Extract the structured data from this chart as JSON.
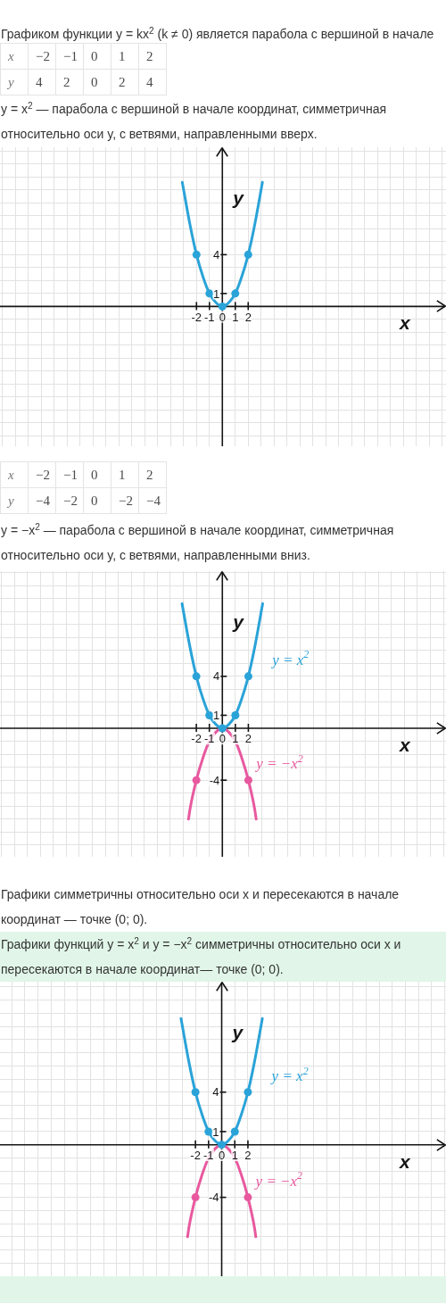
{
  "chart_data": [
    {
      "type": "heatmap",
      "title": "Графиком функции y = kx$^{2}$ (k ≠ 0) является парабола с вершиной в начале",
      "xlabel": "x",
      "categories": [
        "−2",
        "−1",
        "0",
        "1",
        "2"
      ],
      "y_categories": [
        "y"
      ],
      "cells": [
        [
          4,
          2,
          0,
          2,
          4
        ]
      ],
      "data_labels": true
    },
    {
      "type": "line",
      "title": "y = x$^{2}$ — парабола с вершиной в начале координат, симметричная относительно оси y, с ветвями, направленными вверх.",
      "xlabel": "x",
      "ylabel": "y",
      "xlim": [
        -17.2,
        17.3
      ],
      "ylim": [
        -10.8,
        12.3
      ],
      "xticks": [
        {
          "value": -17,
          "label": null
        },
        {
          "value": -16,
          "label": null
        },
        {
          "value": -15,
          "label": null
        },
        {
          "value": -14,
          "label": null
        },
        {
          "value": -13,
          "label": null
        },
        {
          "value": -12,
          "label": null
        },
        {
          "value": -11,
          "label": null
        },
        {
          "value": -10,
          "label": null
        },
        {
          "value": -9,
          "label": null
        },
        {
          "value": -8,
          "label": null
        },
        {
          "value": -7,
          "label": null
        },
        {
          "value": -6,
          "label": null
        },
        {
          "value": -5,
          "label": null
        },
        {
          "value": -4,
          "label": null
        },
        {
          "value": -3,
          "label": null
        },
        -2,
        -1,
        0,
        1,
        2,
        {
          "value": 3,
          "label": null
        },
        {
          "value": 4,
          "label": null
        },
        {
          "value": 5,
          "label": null
        },
        {
          "value": 6,
          "label": null
        },
        {
          "value": 7,
          "label": null
        },
        {
          "value": 8,
          "label": null
        },
        {
          "value": 9,
          "label": null
        },
        {
          "value": 10,
          "label": null
        },
        {
          "value": 11,
          "label": null
        },
        {
          "value": 12,
          "label": null
        },
        {
          "value": 13,
          "label": null
        },
        {
          "value": 14,
          "label": null
        },
        {
          "value": 15,
          "label": null
        },
        {
          "value": 16,
          "label": null
        },
        {
          "value": 17,
          "label": null
        }
      ],
      "yticks": [
        {
          "value": -10,
          "label": null
        },
        {
          "value": -9,
          "label": null
        },
        {
          "value": -8,
          "label": null
        },
        {
          "value": -7,
          "label": null
        },
        {
          "value": -6,
          "label": null
        },
        {
          "value": -5,
          "label": null
        },
        {
          "value": -4,
          "label": null
        },
        {
          "value": -3,
          "label": null
        },
        {
          "value": -2,
          "label": null
        },
        {
          "value": -1,
          "label": null
        },
        {
          "value": 0,
          "label": null
        },
        1,
        {
          "value": 2,
          "label": null
        },
        {
          "value": 3,
          "label": null
        },
        4,
        {
          "value": 5,
          "label": null
        },
        {
          "value": 6,
          "label": null
        },
        {
          "value": 7,
          "label": null
        },
        {
          "value": 8,
          "label": null
        },
        {
          "value": 9,
          "label": null
        },
        {
          "value": 10,
          "label": null
        },
        {
          "value": 11,
          "label": null
        },
        {
          "value": 12,
          "label": null
        }
      ],
      "grid": true,
      "marker": "circle",
      "series": [
        {
          "type": "line",
          "marker": "none",
          "color": "#2aa3d8",
          "x": [
            -3.1,
            -2.5,
            -2,
            -1.5,
            -1,
            -0.5,
            0,
            0.5,
            1,
            1.5,
            2,
            2.5,
            3.1
          ],
          "values": [
            9.6,
            6.3,
            4,
            2.3,
            1,
            0.3,
            0,
            0.3,
            1,
            2.3,
            4,
            6.3,
            9.6
          ]
        },
        {
          "type": "scatter",
          "color": "#2aa3d8",
          "x": [
            -2,
            -1,
            0,
            1,
            2
          ],
          "values": [
            4,
            1,
            0,
            1,
            4
          ]
        }
      ]
    },
    {
      "type": "heatmap",
      "xlabel": "x",
      "categories": [
        "−2",
        "−1",
        "0",
        "1",
        "2"
      ],
      "y_categories": [
        "y"
      ],
      "cells": [
        [
          -4,
          -2,
          0,
          -2,
          -4
        ]
      ],
      "cell_labels": [
        [
          "−4",
          "−2",
          "0",
          "−2",
          "−4"
        ]
      ]
    },
    {
      "type": "line",
      "title": "y = −x$^{2}$ — парабола с вершиной в начале координат, симметричная относительно оси y, с ветвями, направленными вниз.",
      "annotations": [
        "Графики симметричны относительно оси x и пересекаются в начале координат — точке (0; 0)."
      ],
      "xlabel": "x",
      "ylabel": "y",
      "xlim": [
        -17.1,
        17.2
      ],
      "ylim": [
        -9.9,
        12.1
      ],
      "xticks": [
        {
          "value": -17,
          "label": null
        },
        {
          "value": -16,
          "label": null
        },
        {
          "value": -15,
          "label": null
        },
        {
          "value": -14,
          "label": null
        },
        {
          "value": -13,
          "label": null
        },
        {
          "value": -12,
          "label": null
        },
        {
          "value": -11,
          "label": null
        },
        {
          "value": -10,
          "label": null
        },
        {
          "value": -9,
          "label": null
        },
        {
          "value": -8,
          "label": null
        },
        {
          "value": -7,
          "label": null
        },
        {
          "value": -6,
          "label": null
        },
        {
          "value": -5,
          "label": null
        },
        {
          "value": -4,
          "label": null
        },
        {
          "value": -3,
          "label": null
        },
        -2,
        -1,
        0,
        1,
        2,
        {
          "value": 3,
          "label": null
        },
        {
          "value": 4,
          "label": null
        },
        {
          "value": 5,
          "label": null
        },
        {
          "value": 6,
          "label": null
        },
        {
          "value": 7,
          "label": null
        },
        {
          "value": 8,
          "label": null
        },
        {
          "value": 9,
          "label": null
        },
        {
          "value": 10,
          "label": null
        },
        {
          "value": 11,
          "label": null
        },
        {
          "value": 12,
          "label": null
        },
        {
          "value": 13,
          "label": null
        },
        {
          "value": 14,
          "label": null
        },
        {
          "value": 15,
          "label": null
        },
        {
          "value": 16,
          "label": null
        },
        {
          "value": 17,
          "label": null
        }
      ],
      "yticks": [
        {
          "value": -9,
          "label": null
        },
        {
          "value": -8,
          "label": null
        },
        {
          "value": -7,
          "label": null
        },
        {
          "value": -6,
          "label": null
        },
        {
          "value": -5,
          "label": null
        },
        -4,
        {
          "value": -3,
          "label": null
        },
        {
          "value": -2,
          "label": null
        },
        {
          "value": -1,
          "label": null
        },
        {
          "value": 0,
          "label": null
        },
        1,
        {
          "value": 2,
          "label": null
        },
        {
          "value": 3,
          "label": null
        },
        4,
        {
          "value": 5,
          "label": null
        },
        {
          "value": 6,
          "label": null
        },
        {
          "value": 7,
          "label": null
        },
        {
          "value": 8,
          "label": null
        },
        {
          "value": 9,
          "label": null
        },
        {
          "value": 10,
          "label": null
        },
        {
          "value": 11,
          "label": null
        },
        {
          "value": 12,
          "label": null
        }
      ],
      "grid": true,
      "marker": "circle",
      "series": [
        {
          "type": "line",
          "marker": "none",
          "name": "y = x$^{2}$",
          "color": "#2aa3d8",
          "x": [
            -3.1,
            -2.5,
            -2,
            -1.5,
            -1,
            -0.5,
            0,
            0.5,
            1,
            1.5,
            2,
            2.5,
            3.1
          ],
          "values": [
            9.6,
            6.3,
            4,
            2.3,
            1,
            0.3,
            0,
            0.3,
            1,
            2.3,
            4,
            6.3,
            9.6
          ]
        },
        {
          "type": "scatter",
          "color": "#2aa3d8",
          "x": [
            -2,
            -1,
            0,
            1,
            2
          ],
          "values": [
            4,
            1,
            0,
            1,
            4
          ]
        },
        {
          "type": "line",
          "marker": "none",
          "name": "y = −x$^{2}$",
          "color": "#e8599f",
          "x": [
            -2.6,
            -2.5,
            -2,
            -1.5,
            -1,
            -0.5,
            0,
            0.5,
            1,
            1.5,
            2,
            2.5,
            2.6
          ],
          "values": [
            -7,
            -6.3,
            -4,
            -2.3,
            -1,
            -0.3,
            0,
            -0.3,
            -1,
            -2.3,
            -4,
            -6.3,
            -7
          ]
        },
        {
          "type": "scatter",
          "color": "#e8599f",
          "x": [
            -2,
            2
          ],
          "values": [
            -4,
            -4
          ]
        }
      ]
    },
    {
      "type": "line",
      "title": "Графики функций y = x$^{2}$ и y = −x$^{2}$ симметричны относительно оси x и пересекаются в начале координат— точке (0; 0).",
      "xlabel": "x",
      "ylabel": "y",
      "xlim": [
        -16.9,
        17.1
      ],
      "ylim": [
        -10,
        12.4
      ],
      "xticks": [
        {
          "value": -16,
          "label": null
        },
        {
          "value": -15,
          "label": null
        },
        {
          "value": -14,
          "label": null
        },
        {
          "value": -13,
          "label": null
        },
        {
          "value": -12,
          "label": null
        },
        {
          "value": -11,
          "label": null
        },
        {
          "value": -10,
          "label": null
        },
        {
          "value": -9,
          "label": null
        },
        {
          "value": -8,
          "label": null
        },
        {
          "value": -7,
          "label": null
        },
        {
          "value": -6,
          "label": null
        },
        {
          "value": -5,
          "label": null
        },
        {
          "value": -4,
          "label": null
        },
        {
          "value": -3,
          "label": null
        },
        -2,
        -1,
        0,
        1,
        2,
        {
          "value": 3,
          "label": null
        },
        {
          "value": 4,
          "label": null
        },
        {
          "value": 5,
          "label": null
        },
        {
          "value": 6,
          "label": null
        },
        {
          "value": 7,
          "label": null
        },
        {
          "value": 8,
          "label": null
        },
        {
          "value": 9,
          "label": null
        },
        {
          "value": 10,
          "label": null
        },
        {
          "value": 11,
          "label": null
        },
        {
          "value": 12,
          "label": null
        },
        {
          "value": 13,
          "label": null
        },
        {
          "value": 14,
          "label": null
        },
        {
          "value": 15,
          "label": null
        },
        {
          "value": 16,
          "label": null
        },
        {
          "value": 17,
          "label": null
        }
      ],
      "yticks": [
        {
          "value": -10,
          "label": null
        },
        {
          "value": -9,
          "label": null
        },
        {
          "value": -8,
          "label": null
        },
        {
          "value": -7,
          "label": null
        },
        {
          "value": -6,
          "label": null
        },
        {
          "value": -5,
          "label": null
        },
        -4,
        {
          "value": -3,
          "label": null
        },
        {
          "value": -2,
          "label": null
        },
        {
          "value": -1,
          "label": null
        },
        {
          "value": 0,
          "label": null
        },
        1,
        {
          "value": 2,
          "label": null
        },
        {
          "value": 3,
          "label": null
        },
        4,
        {
          "value": 5,
          "label": null
        },
        {
          "value": 6,
          "label": null
        },
        {
          "value": 7,
          "label": null
        },
        {
          "value": 8,
          "label": null
        },
        {
          "value": 9,
          "label": null
        },
        {
          "value": 10,
          "label": null
        },
        {
          "value": 11,
          "label": null
        },
        {
          "value": 12,
          "label": null
        }
      ],
      "grid": true,
      "marker": "circle",
      "series": [
        {
          "type": "line",
          "marker": "none",
          "name": "y = x$^{2}$",
          "color": "#2aa3d8",
          "x": [
            -3.1,
            -2.5,
            -2,
            -1.5,
            -1,
            -0.5,
            0,
            0.5,
            1,
            1.5,
            2,
            2.5,
            3.1
          ],
          "values": [
            9.6,
            6.3,
            4,
            2.3,
            1,
            0.3,
            0,
            0.3,
            1,
            2.3,
            4,
            6.3,
            9.6
          ]
        },
        {
          "type": "scatter",
          "color": "#2aa3d8",
          "x": [
            -2,
            -1,
            0,
            1,
            2
          ],
          "values": [
            4,
            1,
            0,
            1,
            4
          ]
        },
        {
          "type": "line",
          "marker": "none",
          "name": "y = −x$^{2}$",
          "color": "#e8599f",
          "x": [
            -2.6,
            -2.5,
            -2,
            -1.5,
            -1,
            -0.5,
            0,
            0.5,
            1,
            1.5,
            2,
            2.5,
            2.6
          ],
          "values": [
            -7,
            -6.3,
            -4,
            -2.3,
            -1,
            -0.3,
            0,
            -0.3,
            -1,
            -2.3,
            -4,
            -6.3,
            -7
          ]
        },
        {
          "type": "scatter",
          "color": "#e8599f",
          "x": [
            -2,
            2
          ],
          "values": [
            -4,
            -4
          ]
        }
      ]
    }
  ]
}
